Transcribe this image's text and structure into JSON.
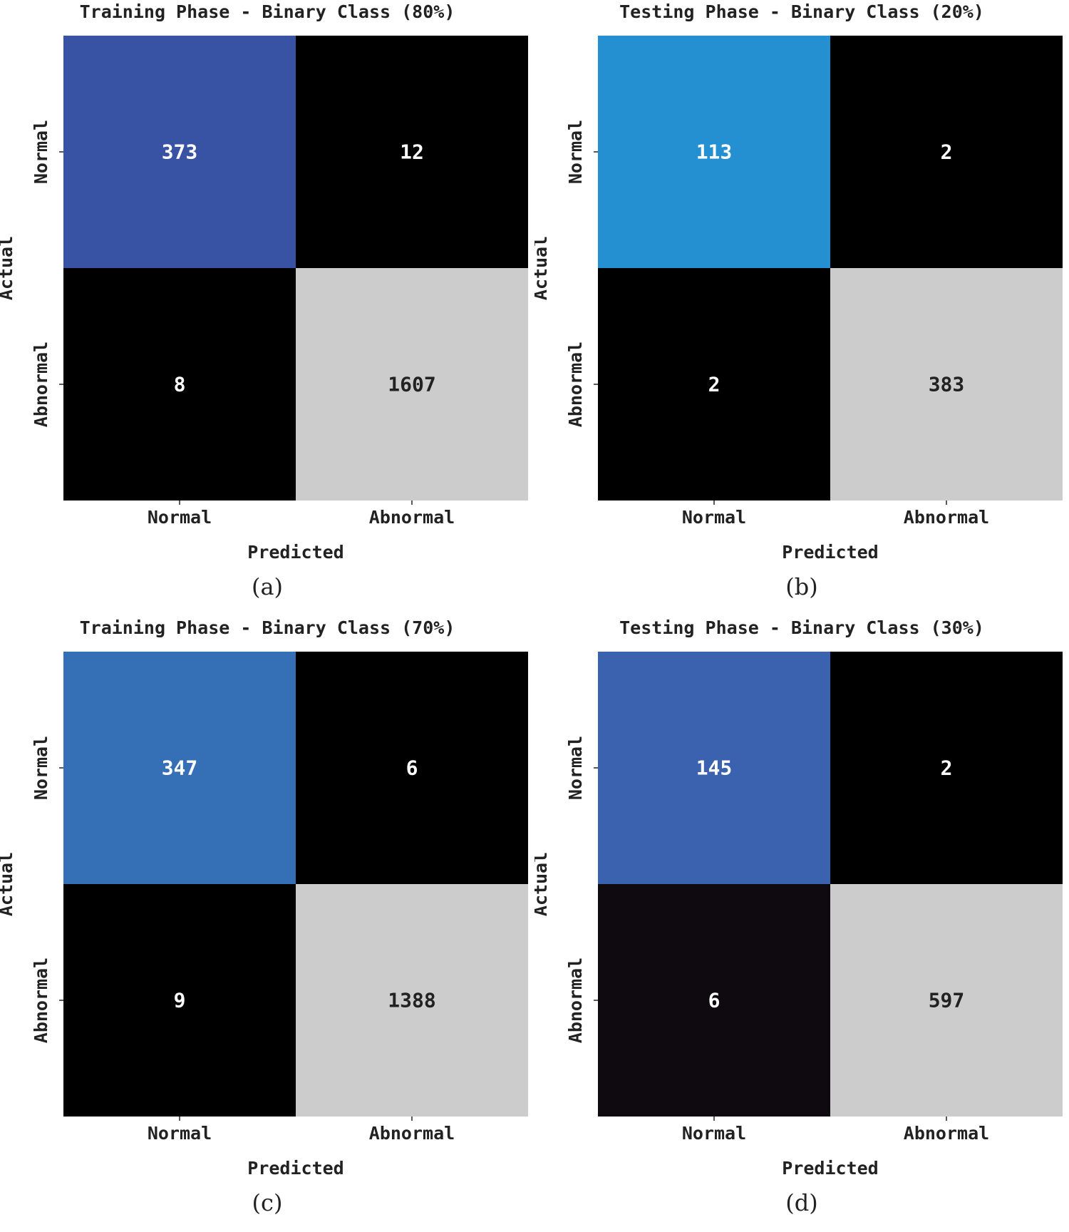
{
  "chart_data": [
    {
      "type": "heatmap",
      "title": "Training Phase - Binary Class (80%)",
      "xlabel": "Predicted",
      "ylabel": "Actual",
      "x_categories": [
        "Normal",
        "Abnormal"
      ],
      "y_categories": [
        "Normal",
        "Abnormal"
      ],
      "values": [
        [
          373,
          12
        ],
        [
          8,
          1607
        ]
      ],
      "cell_colors": [
        [
          "#3953a4",
          "#000000"
        ],
        [
          "#000000",
          "#cccccc"
        ]
      ],
      "text_colors": [
        [
          "#ffffff",
          "#ffffff"
        ],
        [
          "#ffffff",
          "#222222"
        ]
      ],
      "caption": "(a)"
    },
    {
      "type": "heatmap",
      "title": "Testing Phase - Binary Class (20%)",
      "xlabel": "Predicted",
      "ylabel": "Actual",
      "x_categories": [
        "Normal",
        "Abnormal"
      ],
      "y_categories": [
        "Normal",
        "Abnormal"
      ],
      "values": [
        [
          113,
          2
        ],
        [
          2,
          383
        ]
      ],
      "cell_colors": [
        [
          "#2590d1",
          "#000000"
        ],
        [
          "#000000",
          "#cccccc"
        ]
      ],
      "text_colors": [
        [
          "#ffffff",
          "#ffffff"
        ],
        [
          "#ffffff",
          "#222222"
        ]
      ],
      "caption": "(b)"
    },
    {
      "type": "heatmap",
      "title": "Training Phase - Binary Class (70%)",
      "xlabel": "Predicted",
      "ylabel": "Actual",
      "x_categories": [
        "Normal",
        "Abnormal"
      ],
      "y_categories": [
        "Normal",
        "Abnormal"
      ],
      "values": [
        [
          347,
          6
        ],
        [
          9,
          1388
        ]
      ],
      "cell_colors": [
        [
          "#356fb5",
          "#000000"
        ],
        [
          "#000000",
          "#cccccc"
        ]
      ],
      "text_colors": [
        [
          "#ffffff",
          "#ffffff"
        ],
        [
          "#ffffff",
          "#222222"
        ]
      ],
      "caption": "(c)"
    },
    {
      "type": "heatmap",
      "title": "Testing Phase - Binary Class (30%)",
      "xlabel": "Predicted",
      "ylabel": "Actual",
      "x_categories": [
        "Normal",
        "Abnormal"
      ],
      "y_categories": [
        "Normal",
        "Abnormal"
      ],
      "values": [
        [
          145,
          2
        ],
        [
          6,
          597
        ]
      ],
      "cell_colors": [
        [
          "#3a62ae",
          "#000000"
        ],
        [
          "#0e0a10",
          "#cccccc"
        ]
      ],
      "text_colors": [
        [
          "#ffffff",
          "#ffffff"
        ],
        [
          "#ffffff",
          "#222222"
        ]
      ],
      "caption": "(d)"
    }
  ]
}
